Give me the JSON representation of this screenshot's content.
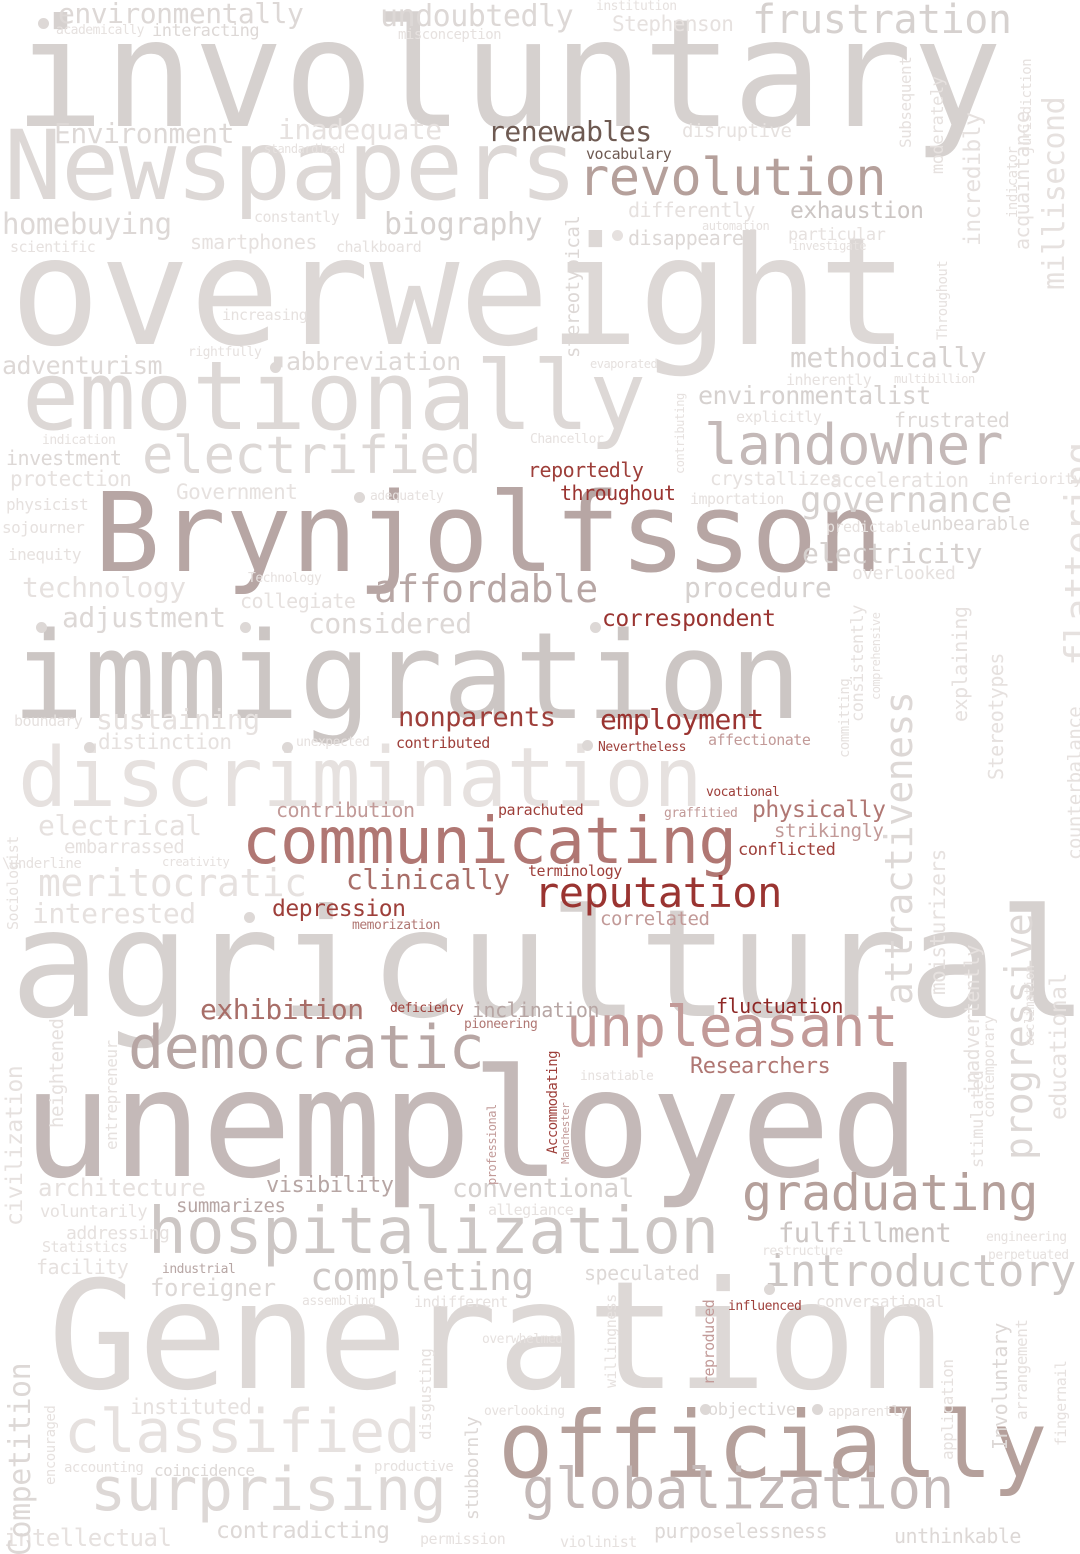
{
  "colors": {
    "background": "#ffffff",
    "tones": [
      "#e6e1df",
      "#ddd8d6",
      "#d6d1cf",
      "#ccc6c4",
      "#c4b9b8",
      "#b7a6a4",
      "#b5a09b",
      "#a79895",
      "#c29a98",
      "#b07773",
      "#a86e68",
      "#9e3f3a",
      "#9a3431",
      "#8e2826",
      "#6e5a52"
    ]
  },
  "words": [
    {
      "text": "involuntary",
      "c": 2
    },
    {
      "text": "overweight",
      "c": 1
    },
    {
      "text": "Generation",
      "c": 1
    },
    {
      "text": "unemployed",
      "c": 4
    },
    {
      "text": "agricultural",
      "c": 2
    },
    {
      "text": "immigration",
      "c": 3
    },
    {
      "text": "Brynjolfsson",
      "c": 5
    },
    {
      "text": "Newspapers",
      "c": 1
    },
    {
      "text": "emotionally",
      "c": 1
    },
    {
      "text": "discrimination",
      "c": 0
    },
    {
      "text": "communicating",
      "c": 9
    },
    {
      "text": "officially",
      "c": 6
    },
    {
      "text": "hospitalization",
      "c": 3
    },
    {
      "text": "surprising",
      "c": 1
    },
    {
      "text": "classified",
      "c": 0
    },
    {
      "text": "globalization",
      "c": 4
    },
    {
      "text": "democratic",
      "c": 5
    },
    {
      "text": "unpleasant",
      "c": 8
    },
    {
      "text": "revolution",
      "c": 6
    },
    {
      "text": "landowner",
      "c": 4
    },
    {
      "text": "electrified",
      "c": 1
    },
    {
      "text": "graduating",
      "c": 6
    },
    {
      "text": "reputation",
      "c": 12
    },
    {
      "text": "introductory",
      "c": 3
    },
    {
      "text": "completing",
      "c": 3
    },
    {
      "text": "frustration",
      "c": 2
    },
    {
      "text": "affordable",
      "c": 5
    },
    {
      "text": "meritocratic",
      "c": 0
    },
    {
      "text": "governance",
      "c": 2
    },
    {
      "text": "renewables",
      "c": 14
    },
    {
      "text": "methodically",
      "c": 2
    },
    {
      "text": "employment",
      "c": 12
    },
    {
      "text": "clinically",
      "c": 10
    },
    {
      "text": "exhibition",
      "c": 10
    },
    {
      "text": "fulfillment",
      "c": 3
    },
    {
      "text": "conventional",
      "c": 2
    },
    {
      "text": "undoubtedly",
      "c": 1
    },
    {
      "text": "environmentally",
      "c": 1
    },
    {
      "text": "inadequate",
      "c": 0
    },
    {
      "text": "Environment",
      "c": 1
    },
    {
      "text": "biography",
      "c": 2
    },
    {
      "text": "homebuying",
      "c": 1
    },
    {
      "text": "exhaustion",
      "c": 3
    },
    {
      "text": "environmentalist",
      "c": 2
    },
    {
      "text": "electricity",
      "c": 2
    },
    {
      "text": "procedure",
      "c": 2
    },
    {
      "text": "considered",
      "c": 1
    },
    {
      "text": "technology",
      "c": 0
    },
    {
      "text": "adjustment",
      "c": 1
    },
    {
      "text": "electrical",
      "c": 0
    },
    {
      "text": "interested",
      "c": 0
    },
    {
      "text": "sustaining",
      "c": 0
    },
    {
      "text": "correspondent",
      "c": 12
    },
    {
      "text": "nonparents",
      "c": 11
    },
    {
      "text": "depression",
      "c": 11
    },
    {
      "text": "fluctuation",
      "c": 13
    },
    {
      "text": "Researchers",
      "c": 9
    },
    {
      "text": "architecture",
      "c": 0
    },
    {
      "text": "foreigner",
      "c": 1
    },
    {
      "text": "speculated",
      "c": 1
    },
    {
      "text": "instituted",
      "c": 0
    },
    {
      "text": "contradicting",
      "c": 1
    },
    {
      "text": "intellectual",
      "c": 0
    },
    {
      "text": "purposelessness",
      "c": 1
    },
    {
      "text": "unthinkable",
      "c": 1
    },
    {
      "text": "reportedly",
      "c": 11
    },
    {
      "text": "throughout",
      "c": 12
    },
    {
      "text": "contribution",
      "c": 8
    },
    {
      "text": "physically",
      "c": 9
    },
    {
      "text": "strikingly",
      "c": 8
    },
    {
      "text": "conflicted",
      "c": 11
    },
    {
      "text": "correlated",
      "c": 8
    },
    {
      "text": "inclination",
      "c": 5
    },
    {
      "text": "visibility",
      "c": 5
    },
    {
      "text": "summarizes",
      "c": 5
    },
    {
      "text": "abbreviation",
      "c": 1
    },
    {
      "text": "adventurism",
      "c": 1
    },
    {
      "text": "investment",
      "c": 1
    },
    {
      "text": "protection",
      "c": 0
    },
    {
      "text": "Government",
      "c": 0
    },
    {
      "text": "collegiate",
      "c": 0
    },
    {
      "text": "distinction",
      "c": 0
    },
    {
      "text": "embarrassed",
      "c": 0
    },
    {
      "text": "smartphones",
      "c": 0
    },
    {
      "text": "differently",
      "c": 0
    },
    {
      "text": "disappeared",
      "c": 1
    },
    {
      "text": "disruptive",
      "c": 0
    },
    {
      "text": "acceleration",
      "c": 0
    },
    {
      "text": "crystallizes",
      "c": 0
    },
    {
      "text": "frustrated",
      "c": 1
    },
    {
      "text": "unbearable",
      "c": 1
    },
    {
      "text": "overlooked",
      "c": 0
    },
    {
      "text": "inherently",
      "c": 0
    },
    {
      "text": "explicitly",
      "c": 0
    },
    {
      "text": "importation",
      "c": 0
    },
    {
      "text": "inferiority",
      "c": 0
    },
    {
      "text": "predictable",
      "c": 0
    },
    {
      "text": "particular",
      "c": 0
    },
    {
      "text": "investigate",
      "c": 0
    },
    {
      "text": "automation",
      "c": 0
    },
    {
      "text": "vocabulary",
      "c": 14
    },
    {
      "text": "standardized",
      "c": 0
    },
    {
      "text": "constantly",
      "c": 0
    },
    {
      "text": "chalkboard",
      "c": 0
    },
    {
      "text": "scientific",
      "c": 0
    },
    {
      "text": "academically",
      "c": 0
    },
    {
      "text": "interacting",
      "c": 1
    },
    {
      "text": "misconception",
      "c": 0
    },
    {
      "text": "institution",
      "c": 0
    },
    {
      "text": "Stephenson",
      "c": 0
    },
    {
      "text": "increasing",
      "c": 0
    },
    {
      "text": "rightfully",
      "c": 0
    },
    {
      "text": "evaporated",
      "c": 0
    },
    {
      "text": "multibillion",
      "c": 0
    },
    {
      "text": "indication",
      "c": 0
    },
    {
      "text": "physicist",
      "c": 0
    },
    {
      "text": "adequately",
      "c": 0
    },
    {
      "text": "Chancellor",
      "c": 0
    },
    {
      "text": "sojourner",
      "c": 0
    },
    {
      "text": "inequity",
      "c": 0
    },
    {
      "text": "Technology",
      "c": 0
    },
    {
      "text": "boundary",
      "c": 0
    },
    {
      "text": "unexpected",
      "c": 0
    },
    {
      "text": "contributed",
      "c": 11
    },
    {
      "text": "Nevertheless",
      "c": 11
    },
    {
      "text": "affectionate",
      "c": 8
    },
    {
      "text": "vocational",
      "c": 11
    },
    {
      "text": "parachuted",
      "c": 11
    },
    {
      "text": "graffitied",
      "c": 8
    },
    {
      "text": "terminology",
      "c": 11
    },
    {
      "text": "memorization",
      "c": 9
    },
    {
      "text": "deficiency",
      "c": 11
    },
    {
      "text": "pioneering",
      "c": 9
    },
    {
      "text": "insatiable",
      "c": 0
    },
    {
      "text": "allegiance",
      "c": 0
    },
    {
      "text": "restructure",
      "c": 0
    },
    {
      "text": "engineering",
      "c": 0
    },
    {
      "text": "perpetuated",
      "c": 0
    },
    {
      "text": "conversational",
      "c": 0
    },
    {
      "text": "influenced",
      "c": 11
    },
    {
      "text": "indifferent",
      "c": 0
    },
    {
      "text": "assembling",
      "c": 0
    },
    {
      "text": "industrial",
      "c": 5
    },
    {
      "text": "voluntarily",
      "c": 0
    },
    {
      "text": "addressing",
      "c": 0
    },
    {
      "text": "Statistics",
      "c": 0
    },
    {
      "text": "facility",
      "c": 0
    },
    {
      "text": "\\underline",
      "c": 0
    },
    {
      "text": "creativity",
      "c": 0
    },
    {
      "text": "overwhelmed",
      "c": 0
    },
    {
      "text": "overlooking",
      "c": 0
    },
    {
      "text": "objective",
      "c": 1
    },
    {
      "text": "apparently",
      "c": 0
    },
    {
      "text": "accounting",
      "c": 0
    },
    {
      "text": "coincidence",
      "c": 1
    },
    {
      "text": "productive",
      "c": 0
    },
    {
      "text": "permission",
      "c": 0
    },
    {
      "text": "violinist",
      "c": 0
    },
    {
      "text": "millisecond",
      "c": 0
    },
    {
      "text": "incredibly",
      "c": 0
    },
    {
      "text": "moderately",
      "c": 0
    },
    {
      "text": "acquaintance",
      "c": 0
    },
    {
      "text": "indicator",
      "c": 0
    },
    {
      "text": "jurisdiction",
      "c": 0
    },
    {
      "text": "Subsequent",
      "c": 0
    },
    {
      "text": "Throughout",
      "c": 0
    },
    {
      "text": "stereotypical",
      "c": 1
    },
    {
      "text": "contributing",
      "c": 0
    },
    {
      "text": "flattering",
      "c": 0
    },
    {
      "text": "counterbalance",
      "c": 0
    },
    {
      "text": "explaining",
      "c": 0
    },
    {
      "text": "Stereotypes",
      "c": 0
    },
    {
      "text": "attractiveness",
      "c": 1
    },
    {
      "text": "consistently",
      "c": 0
    },
    {
      "text": "comprehensive",
      "c": 0
    },
    {
      "text": "committing",
      "c": 0
    },
    {
      "text": "moisturizers",
      "c": 0
    },
    {
      "text": "inadvertently",
      "c": 0
    },
    {
      "text": "progressive",
      "c": 1
    },
    {
      "text": "educational",
      "c": 0
    },
    {
      "text": "acclimation",
      "c": 0
    },
    {
      "text": "stimulated",
      "c": 0
    },
    {
      "text": "contemporary",
      "c": 0
    },
    {
      "text": "Competition",
      "c": 1
    },
    {
      "text": "civilization",
      "c": 0
    },
    {
      "text": "heightened",
      "c": 0
    },
    {
      "text": "entrepreneur",
      "c": 0
    },
    {
      "text": "Sociologist",
      "c": 0
    },
    {
      "text": "encouraged",
      "c": 0
    },
    {
      "text": "professional",
      "c": 8
    },
    {
      "text": "Accommodating",
      "c": 11
    },
    {
      "text": "Manchester",
      "c": 8
    },
    {
      "text": "willingness",
      "c": 0
    },
    {
      "text": "disgusting",
      "c": 0
    },
    {
      "text": "stubbornly",
      "c": 1
    },
    {
      "text": "reproduced",
      "c": 8
    },
    {
      "text": "Involuntary",
      "c": 1
    },
    {
      "text": "arrangement",
      "c": 0
    },
    {
      "text": "fingernail",
      "c": 0
    },
    {
      "text": "application",
      "c": 0
    }
  ]
}
